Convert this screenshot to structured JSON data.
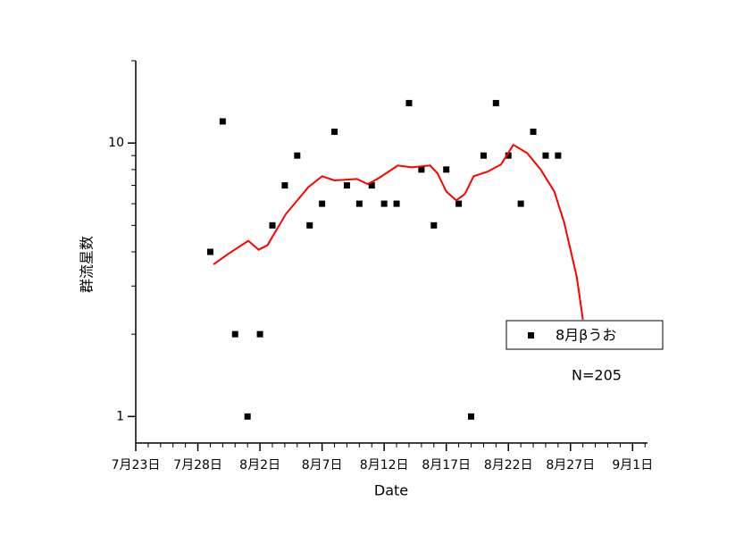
{
  "chart_data": {
    "type": "scatter",
    "xlabel": "Date",
    "ylabel": "群流星数",
    "annotation": "N=205",
    "xlim": [
      0,
      41.2
    ],
    "ylim": [
      0.8,
      20
    ],
    "log_y": true,
    "xticks": [
      {
        "value": 0,
        "label": "7月23日"
      },
      {
        "value": 5,
        "label": "7月28日"
      },
      {
        "value": 10,
        "label": "8月2日"
      },
      {
        "value": 15,
        "label": "8月7日"
      },
      {
        "value": 20,
        "label": "8月12日"
      },
      {
        "value": 25,
        "label": "8月17日"
      },
      {
        "value": 30,
        "label": "8月22日"
      },
      {
        "value": 35,
        "label": "8月27日"
      },
      {
        "value": 40,
        "label": "9月1日"
      }
    ],
    "xminorticks": [
      1,
      2,
      3,
      4,
      6,
      7,
      8,
      9,
      11,
      12,
      13,
      14,
      16,
      17,
      18,
      19,
      21,
      22,
      23,
      24,
      26,
      27,
      28,
      29,
      31,
      32,
      33,
      34,
      36,
      37,
      38,
      39,
      41
    ],
    "yticks": [
      1,
      10
    ],
    "yminorticks": [
      2,
      3,
      4,
      5,
      6,
      7,
      8,
      9,
      20
    ],
    "legend": "lower right",
    "series": [
      {
        "name": "8月βうお",
        "color": "#000000",
        "kind": "points",
        "x": [
          6,
          7,
          8,
          9,
          10,
          11,
          12,
          13,
          14,
          15,
          16,
          17,
          18,
          19,
          20,
          21,
          22,
          23,
          24,
          25,
          26,
          27,
          28,
          29,
          30,
          31,
          32,
          33,
          34
        ],
        "values": [
          4,
          12,
          2,
          1,
          2,
          5,
          7,
          9,
          5,
          6,
          11,
          7,
          6,
          7,
          6,
          6,
          14,
          8,
          5,
          8,
          6,
          1,
          9,
          14,
          9,
          6,
          11,
          9,
          9
        ]
      },
      {
        "color": "#ff0000",
        "kind": "line",
        "x": [
          6.26,
          7.4,
          9.06,
          9.9,
          10.6,
          12.1,
          13.9,
          15.0,
          16.0,
          17.8,
          18.7,
          19.6,
          21.1,
          22.2,
          23.7,
          24.3,
          25.0,
          25.8,
          26.5,
          27.2,
          28.3,
          29.4,
          30.4,
          31.5,
          32.6,
          33.7,
          34.5,
          35.5,
          36.0
        ],
        "values": [
          3.6,
          3.92,
          4.39,
          4.07,
          4.23,
          5.51,
          6.9,
          7.56,
          7.3,
          7.39,
          7.07,
          7.46,
          8.28,
          8.15,
          8.28,
          7.74,
          6.65,
          6.17,
          6.51,
          7.56,
          7.85,
          8.34,
          9.85,
          9.2,
          8.0,
          6.65,
          5.1,
          3.25,
          2.26
        ]
      }
    ]
  }
}
